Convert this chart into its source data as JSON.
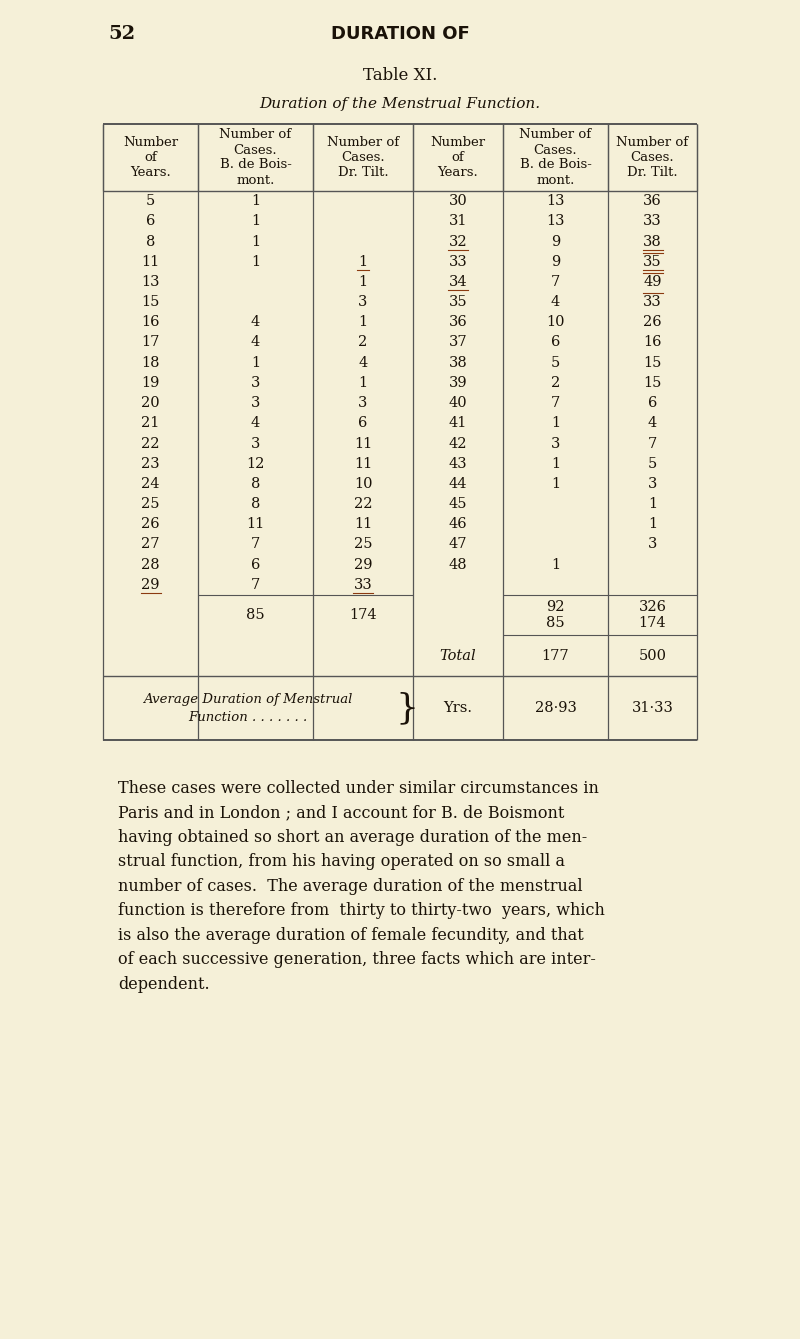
{
  "page_number": "52",
  "header": "DURATION OF",
  "table_title": "Table XI.",
  "table_subtitle": "Duration of the Menstrual Function.",
  "bg_color": "#f5f0d8",
  "text_color": "#1a1208",
  "col_headers": [
    "Number\nof\nYears.",
    "Number of\nCases.\nB. de Bois-\nmont.",
    "Number of\nCases.\nDr. Tilt.",
    "Number\nof\nYears.",
    "Number of\nCases.\nB. de Bois-\nmont.",
    "Number of\nCases.\nDr. Tilt."
  ],
  "left_rows": [
    [
      "5",
      "1",
      ""
    ],
    [
      "6",
      "1",
      ""
    ],
    [
      "8",
      "1",
      ""
    ],
    [
      "11",
      "1",
      "1"
    ],
    [
      "13",
      "",
      "1"
    ],
    [
      "15",
      "",
      "3"
    ],
    [
      "16",
      "4",
      "1"
    ],
    [
      "17",
      "4",
      "2"
    ],
    [
      "18",
      "1",
      "4"
    ],
    [
      "19",
      "3",
      "1"
    ],
    [
      "20",
      "3",
      "3"
    ],
    [
      "21",
      "4",
      "6"
    ],
    [
      "22",
      "3",
      "11"
    ],
    [
      "23",
      "12",
      "11"
    ],
    [
      "24",
      "8",
      "10"
    ],
    [
      "25",
      "8",
      "22"
    ],
    [
      "26",
      "11",
      "11"
    ],
    [
      "27",
      "7",
      "25"
    ],
    [
      "28",
      "6",
      "29"
    ],
    [
      "29",
      "7",
      "33"
    ]
  ],
  "right_rows": [
    [
      "30",
      "13",
      "36"
    ],
    [
      "31",
      "13",
      "33"
    ],
    [
      "32",
      "9",
      "38"
    ],
    [
      "33",
      "9",
      "35"
    ],
    [
      "34",
      "7",
      "49"
    ],
    [
      "35",
      "4",
      "33"
    ],
    [
      "36",
      "10",
      "26"
    ],
    [
      "37",
      "6",
      "16"
    ],
    [
      "38",
      "5",
      "15"
    ],
    [
      "39",
      "2",
      "15"
    ],
    [
      "40",
      "7",
      "6"
    ],
    [
      "41",
      "1",
      "4"
    ],
    [
      "42",
      "3",
      "7"
    ],
    [
      "43",
      "1",
      "5"
    ],
    [
      "44",
      "1",
      "3"
    ],
    [
      "45",
      "",
      "1"
    ],
    [
      "46",
      "",
      "1"
    ],
    [
      "47",
      "",
      "3"
    ],
    [
      "48",
      "1",
      ""
    ]
  ],
  "subtotal_left_b": "85",
  "subtotal_left_t": "174",
  "subtotal_right_b1": "92",
  "subtotal_right_t1": "326",
  "subtotal_right_b2": "85",
  "subtotal_right_t2": "174",
  "total_label": "Total",
  "total_b": "177",
  "total_t": "500",
  "avg_label1": "Average Duration of Menstrual",
  "avg_label2": "Function . . . . . . .",
  "avg_unit": "Yrs.",
  "avg_b": "28·93",
  "avg_t": "31·33",
  "body_lines": [
    "These cases were collected under similar circumstances in",
    "Paris and in London ; and I account for B. de Boismont",
    "having obtained so short an average duration of the men-",
    "strual function, from his having operated on so small a",
    "number of cases.  The average duration of the menstrual",
    "function is therefore from  thirty to thirty-two  years, which",
    "is also the average duration of female fecundity, and that",
    "of each successive generation, three facts which are inter-",
    "dependent."
  ],
  "line_color": "#555555",
  "ink_color": "#8B3A10"
}
